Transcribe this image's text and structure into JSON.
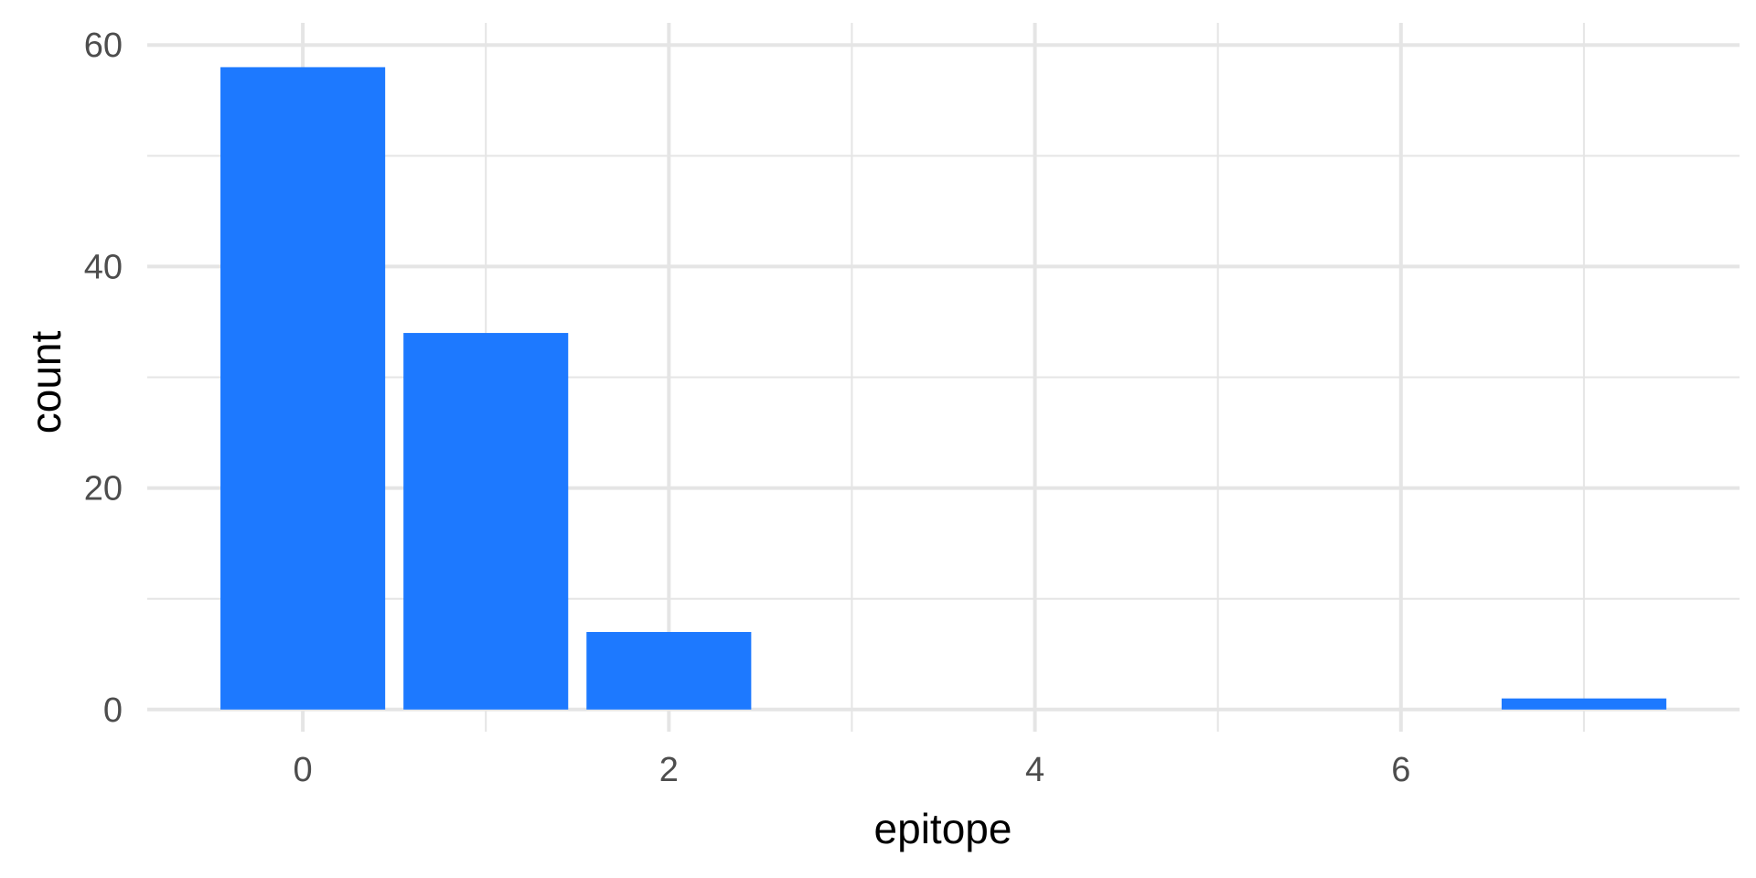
{
  "chart_data": {
    "type": "bar",
    "title": "",
    "xlabel": "epitope",
    "ylabel": "count",
    "x": [
      0,
      1,
      2,
      7
    ],
    "values": [
      58,
      34,
      7,
      1
    ],
    "xlim": [
      -0.85,
      7.85
    ],
    "ylim": [
      -2,
      62
    ],
    "x_ticks": [
      0,
      2,
      4,
      6
    ],
    "x_tick_labels": [
      "0",
      "2",
      "4",
      "6"
    ],
    "y_ticks": [
      0,
      20,
      40,
      60
    ],
    "y_tick_labels": [
      "0",
      "20",
      "40",
      "60"
    ],
    "x_minor_grid": [
      1,
      3,
      5,
      7
    ],
    "y_minor_grid": [
      10,
      30,
      50
    ],
    "bar_width": 0.9,
    "grid": true,
    "legend": "none",
    "colors": {
      "bar": "#1d79ff",
      "grid": "#e5e5e5",
      "background": "#ffffff"
    }
  }
}
